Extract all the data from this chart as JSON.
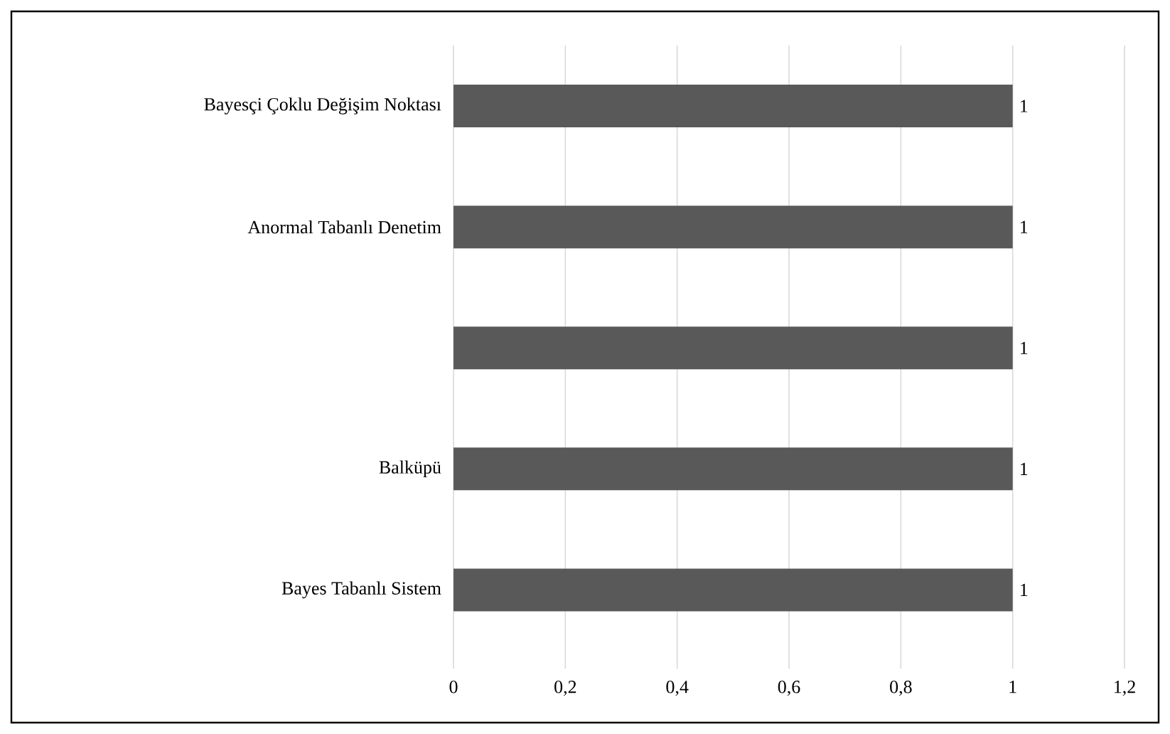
{
  "chart_data": {
    "type": "bar",
    "orientation": "horizontal",
    "categories": [
      "Bayesçi Çoklu Değişim Noktası",
      "Anormal Tabanlı Denetim",
      null,
      "Balküpü",
      "Bayes Tabanlı Sistem"
    ],
    "values": [
      1,
      1,
      1,
      1,
      1
    ],
    "value_labels": [
      "1",
      "1",
      "1",
      "1",
      "1"
    ],
    "color": "#595959",
    "xlim": [
      0,
      1.2
    ],
    "xticks": [
      0,
      {
        "value": 0.2,
        "label": "0,2"
      },
      {
        "value": 0.4,
        "label": "0,4"
      },
      {
        "value": 0.6,
        "label": "0,6"
      },
      {
        "value": 0.8,
        "label": "0,8"
      },
      1,
      {
        "value": 1.2,
        "label": "1,2"
      }
    ],
    "grid": "x"
  }
}
